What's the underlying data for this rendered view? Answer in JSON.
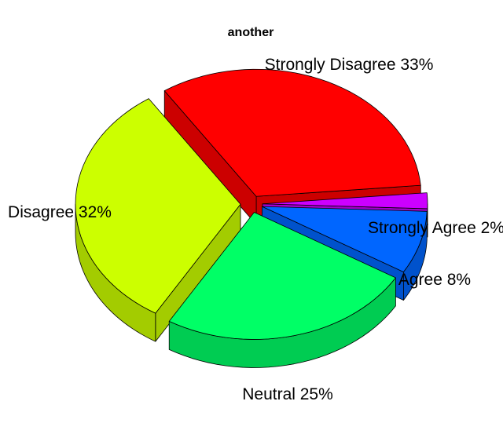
{
  "chart_data": {
    "type": "pie",
    "title": "another",
    "categories": [
      "Strongly Disagree",
      "Disagree",
      "Neutral",
      "Agree",
      "Strongly Agree"
    ],
    "values": [
      33,
      32,
      25,
      8,
      2
    ],
    "labels": [
      "Strongly Disagree 33%",
      "Disagree 32%",
      "Neutral 25%",
      "Agree 8%",
      "Strongly Agree 2%"
    ],
    "colors": [
      "#ff0000",
      "#ccff00",
      "#00ff66",
      "#0066ff",
      "#cc00ff"
    ],
    "side_colors": [
      "#cc0000",
      "#a3cc00",
      "#00cc52",
      "#0052cc",
      "#a300cc"
    ],
    "explode": true,
    "three_d": true
  }
}
